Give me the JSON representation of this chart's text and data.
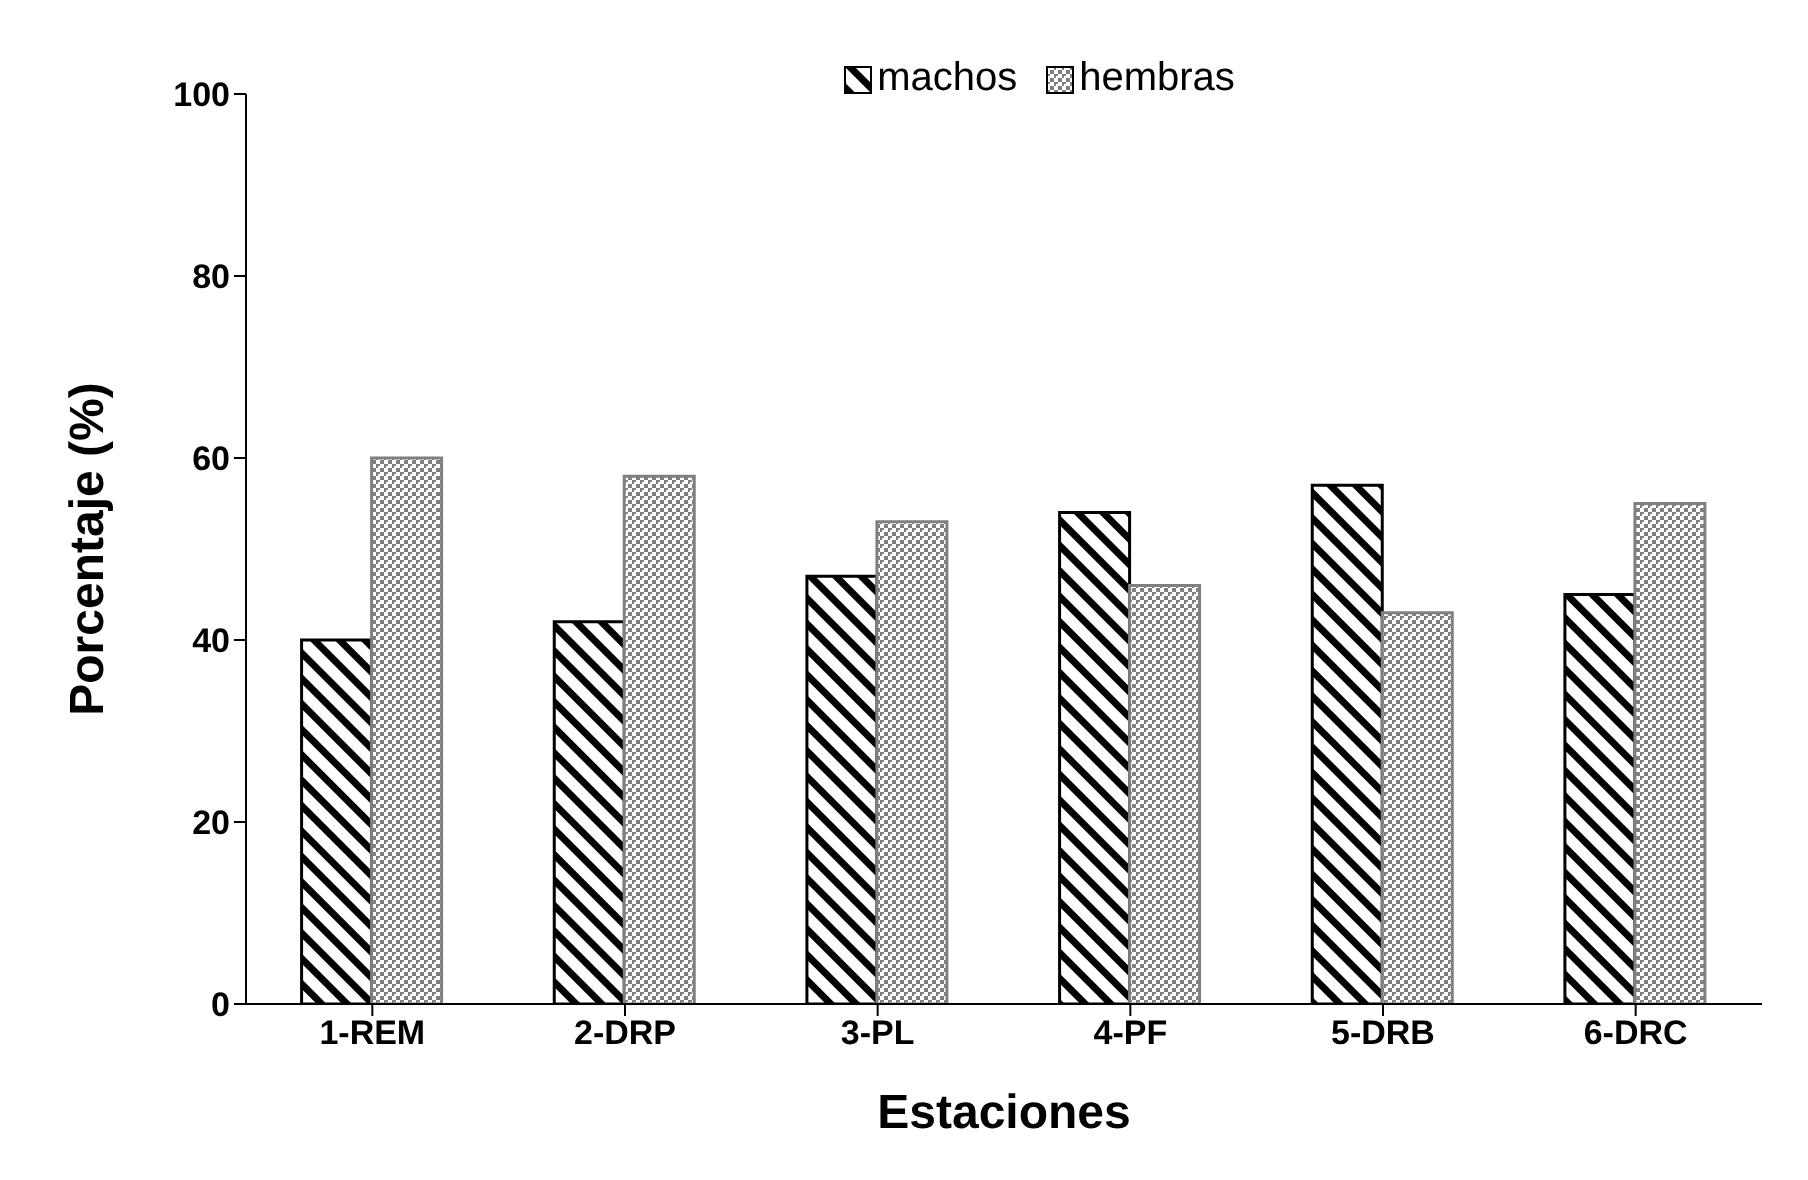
{
  "chart_data": {
    "type": "bar",
    "xlabel": "Estaciones",
    "ylabel": "Porcentaje (%)",
    "categories": [
      "1-REM",
      "2-DRP",
      "3-PL",
      "4-PF",
      "5-DRB",
      "6-DRC"
    ],
    "series": [
      {
        "name": "machos",
        "color": "#000000",
        "values": [
          40,
          42,
          47,
          54,
          57,
          45
        ]
      },
      {
        "name": "hembras",
        "color": "#808080",
        "values": [
          60,
          58,
          53,
          46,
          43,
          55
        ]
      }
    ],
    "ylim": [
      0,
      100
    ],
    "yticks": [
      0,
      20,
      40,
      60,
      80,
      100
    ],
    "grid": false,
    "legend": "top"
  }
}
